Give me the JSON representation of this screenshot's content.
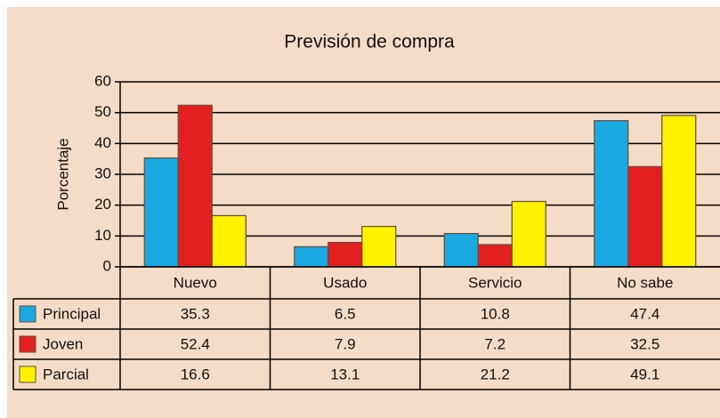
{
  "chart_data": {
    "type": "bar",
    "title": "Previsión de compra",
    "y_label": "Porcentaje",
    "categories": [
      "Nuevo",
      "Usado",
      "Servicio",
      "No sabe"
    ],
    "series": [
      {
        "name": "Principal",
        "color": "#1ba9e1",
        "values": [
          35.3,
          6.5,
          10.8,
          47.4
        ]
      },
      {
        "name": "Joven",
        "color": "#e3201f",
        "values": [
          52.4,
          7.9,
          7.2,
          32.5
        ]
      },
      {
        "name": "Parcial",
        "color": "#fff200",
        "values": [
          16.6,
          13.1,
          21.2,
          49.1
        ]
      }
    ],
    "ylim": [
      0,
      60
    ],
    "yticks": [
      0,
      10,
      20,
      30,
      40,
      50,
      60
    ],
    "grid": true
  }
}
